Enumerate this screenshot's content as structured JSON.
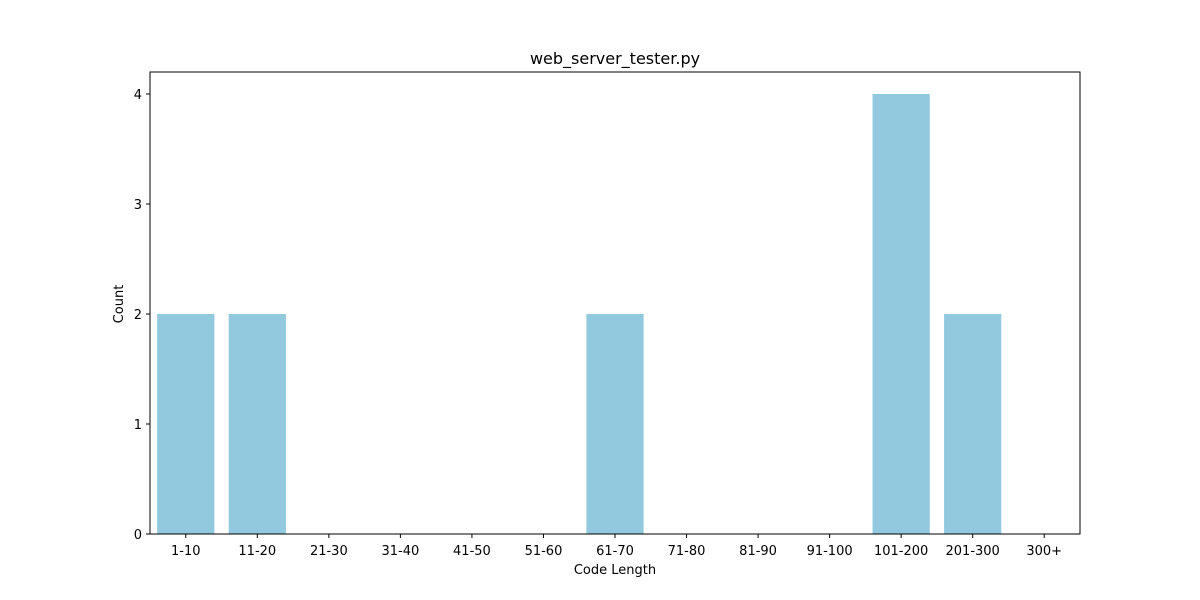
{
  "chart_data": {
    "type": "bar",
    "title": "web_server_tester.py",
    "xlabel": "Code Length",
    "ylabel": "Count",
    "categories": [
      "1-10",
      "11-20",
      "21-30",
      "31-40",
      "41-50",
      "51-60",
      "61-70",
      "71-80",
      "81-90",
      "91-100",
      "101-200",
      "201-300",
      "300+"
    ],
    "values": [
      2,
      2,
      0,
      0,
      0,
      0,
      2,
      0,
      0,
      0,
      4,
      2,
      0
    ],
    "ylim": [
      0,
      4.2
    ],
    "yticks": [
      0,
      1,
      2,
      3,
      4
    ],
    "grid": false,
    "bar_color": "#92c9de"
  }
}
